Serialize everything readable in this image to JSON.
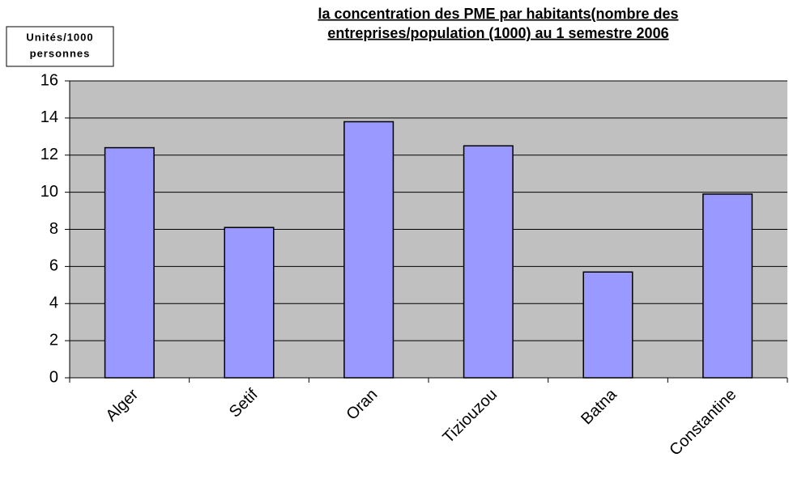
{
  "chart_data": {
    "type": "bar",
    "title": [
      "la concentration des PME par habitants(nombre des",
      "entreprises/population (1000)  au 1 semestre 2006"
    ],
    "y_label": [
      "Unités/1000",
      "personnes"
    ],
    "categories": [
      "Alger",
      "Setif",
      "Oran",
      "Tiziouzou",
      "Batna",
      "Constantine"
    ],
    "values": [
      12.4,
      8.1,
      13.8,
      12.5,
      5.7,
      9.9
    ],
    "color": "#9999ff",
    "ylim": [
      0,
      16
    ],
    "yticks": [
      0,
      2,
      4,
      6,
      8,
      10,
      12,
      14,
      16
    ],
    "grid": true
  }
}
